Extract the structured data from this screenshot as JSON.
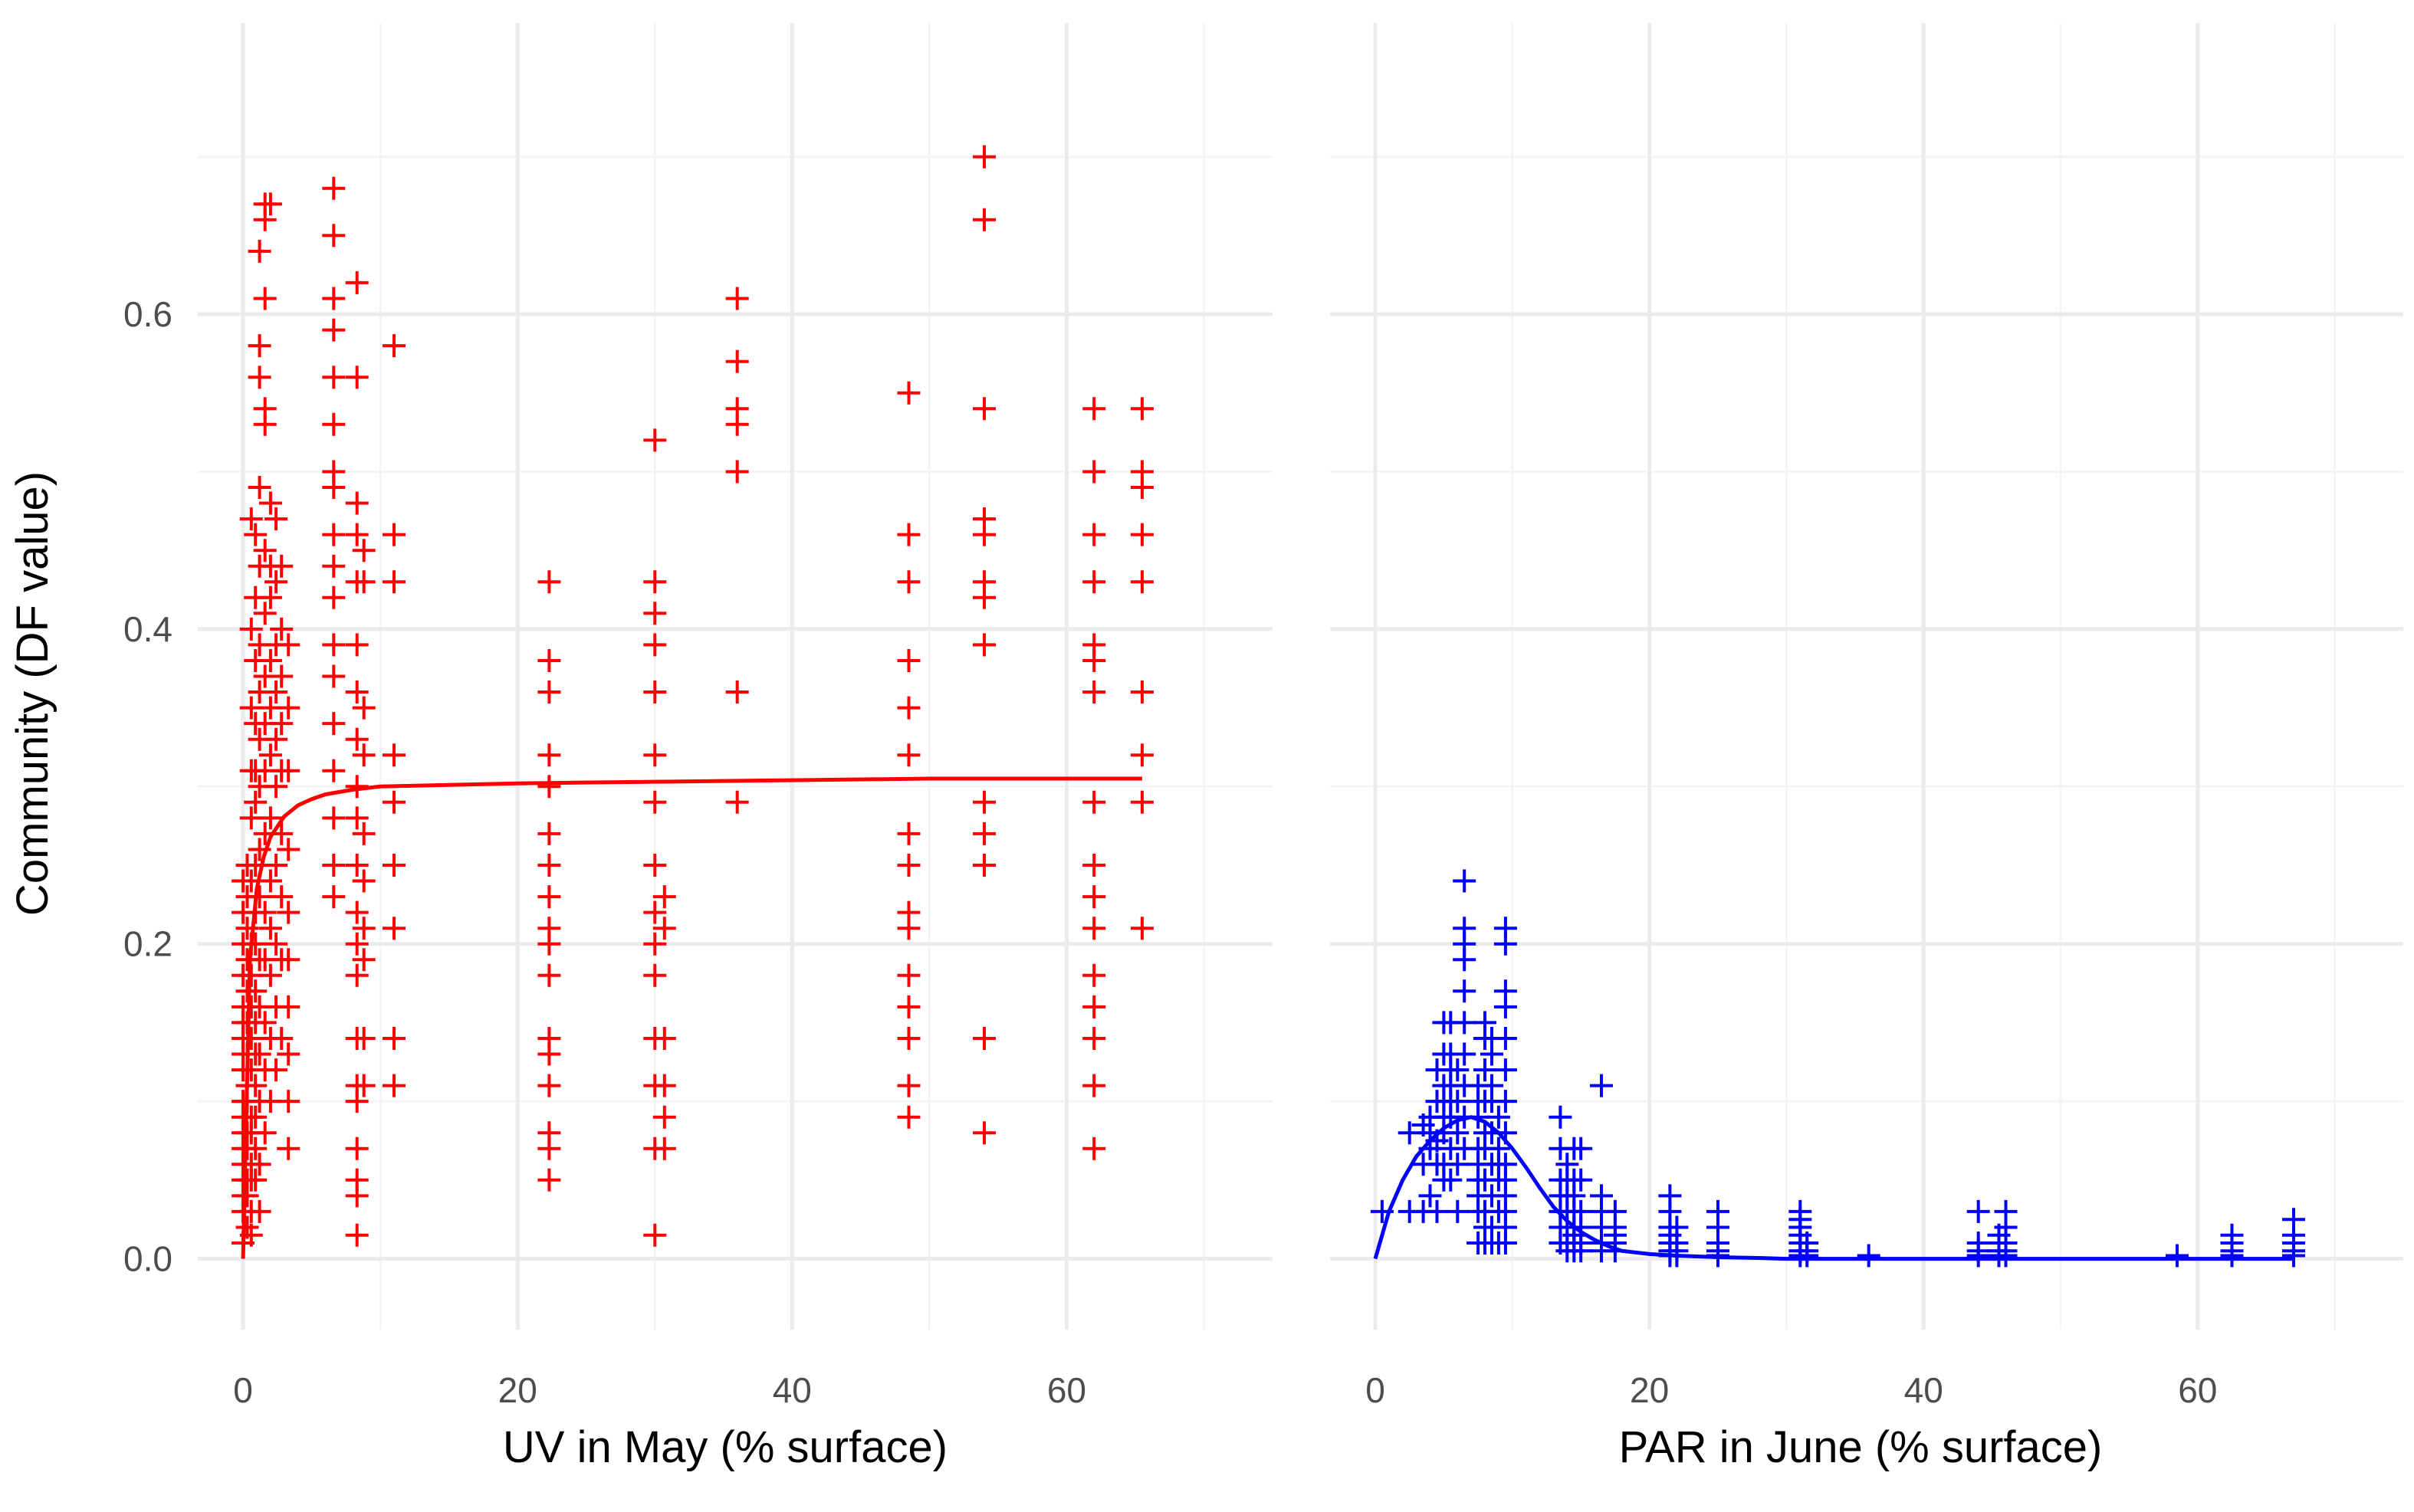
{
  "chart_data": {
    "type": "scatter",
    "shared_y": {
      "label": "Community (DF value)",
      "ylim": [
        -0.045,
        0.785
      ],
      "ticks": [
        0.0,
        0.2,
        0.4,
        0.6
      ],
      "tick_labels": [
        "0.0",
        "0.2",
        "0.4",
        "0.6"
      ]
    },
    "grid": true,
    "legend": "none",
    "panels": [
      {
        "xlabel": "UV in May (% surface)",
        "xlim": [
          -3.3,
          75
        ],
        "x_ticks": [
          0,
          20,
          40,
          60
        ],
        "x_tick_labels": [
          "0",
          "20",
          "40",
          "60"
        ],
        "color": "#ff0000",
        "marker": "plus",
        "series": [
          {
            "x": 0.0,
            "y": [
              0.01,
              0.03,
              0.04,
              0.05,
              0.06,
              0.07,
              0.08,
              0.09,
              0.1,
              0.12,
              0.13,
              0.14,
              0.15,
              0.16,
              0.18,
              0.2,
              0.22,
              0.24
            ]
          },
          {
            "x": 0.3,
            "y": [
              0.02,
              0.04,
              0.05,
              0.07,
              0.08,
              0.1,
              0.11,
              0.13,
              0.15,
              0.17,
              0.19,
              0.21,
              0.23,
              0.25
            ]
          },
          {
            "x": 0.6,
            "y": [
              0.015,
              0.03,
              0.05,
              0.06,
              0.08,
              0.09,
              0.12,
              0.14,
              0.16,
              0.18,
              0.2,
              0.24,
              0.28,
              0.31,
              0.35,
              0.4,
              0.47
            ]
          },
          {
            "x": 0.9,
            "y": [
              0.05,
              0.07,
              0.09,
              0.11,
              0.13,
              0.15,
              0.17,
              0.2,
              0.22,
              0.25,
              0.29,
              0.31,
              0.34,
              0.38,
              0.42,
              0.46
            ]
          },
          {
            "x": 1.2,
            "y": [
              0.03,
              0.06,
              0.1,
              0.13,
              0.16,
              0.19,
              0.23,
              0.26,
              0.3,
              0.33,
              0.36,
              0.39,
              0.44,
              0.49,
              0.56,
              0.58,
              0.64
            ]
          },
          {
            "x": 1.6,
            "y": [
              0.08,
              0.12,
              0.15,
              0.19,
              0.22,
              0.27,
              0.31,
              0.34,
              0.37,
              0.41,
              0.45,
              0.53,
              0.54,
              0.61,
              0.66,
              0.67
            ]
          },
          {
            "x": 2.0,
            "y": [
              0.1,
              0.14,
              0.18,
              0.21,
              0.24,
              0.28,
              0.32,
              0.35,
              0.38,
              0.42,
              0.44,
              0.48,
              0.67
            ]
          },
          {
            "x": 2.4,
            "y": [
              0.12,
              0.16,
              0.2,
              0.25,
              0.3,
              0.33,
              0.36,
              0.39,
              0.43,
              0.47
            ]
          },
          {
            "x": 2.8,
            "y": [
              0.14,
              0.19,
              0.23,
              0.27,
              0.31,
              0.34,
              0.37,
              0.4,
              0.44
            ]
          },
          {
            "x": 3.3,
            "y": [
              0.07,
              0.1,
              0.13,
              0.16,
              0.19,
              0.22,
              0.26,
              0.31,
              0.35,
              0.39
            ]
          },
          {
            "x": 6.6,
            "y": [
              0.23,
              0.25,
              0.28,
              0.31,
              0.34,
              0.37,
              0.39,
              0.42,
              0.44,
              0.46,
              0.49,
              0.5,
              0.53,
              0.56,
              0.59,
              0.61,
              0.65,
              0.68
            ]
          },
          {
            "x": 8.3,
            "y": [
              0.015,
              0.04,
              0.05,
              0.07,
              0.1,
              0.11,
              0.14,
              0.18,
              0.2,
              0.22,
              0.25,
              0.28,
              0.3,
              0.33,
              0.36,
              0.39,
              0.43,
              0.46,
              0.48,
              0.56,
              0.62
            ]
          },
          {
            "x": 8.8,
            "y": [
              0.11,
              0.14,
              0.19,
              0.21,
              0.24,
              0.27,
              0.32,
              0.35,
              0.43,
              0.45
            ]
          },
          {
            "x": 11.0,
            "y": [
              0.11,
              0.14,
              0.21,
              0.25,
              0.29,
              0.32,
              0.43,
              0.46,
              0.58
            ]
          },
          {
            "x": 22.3,
            "y": [
              0.05,
              0.07,
              0.08,
              0.11,
              0.13,
              0.14,
              0.18,
              0.2,
              0.21,
              0.23,
              0.25,
              0.27,
              0.3,
              0.32,
              0.36,
              0.38,
              0.43
            ]
          },
          {
            "x": 30.0,
            "y": [
              0.015,
              0.07,
              0.11,
              0.14,
              0.18,
              0.2,
              0.22,
              0.25,
              0.29,
              0.32,
              0.36,
              0.39,
              0.41,
              0.43,
              0.52
            ]
          },
          {
            "x": 30.7,
            "y": [
              0.07,
              0.09,
              0.11,
              0.14,
              0.21,
              0.23
            ]
          },
          {
            "x": 36.0,
            "y": [
              0.29,
              0.36,
              0.5,
              0.53,
              0.54,
              0.57,
              0.61
            ]
          },
          {
            "x": 48.5,
            "y": [
              0.09,
              0.11,
              0.14,
              0.16,
              0.18,
              0.21,
              0.22,
              0.25,
              0.27,
              0.32,
              0.35,
              0.38,
              0.43,
              0.46,
              0.55
            ]
          },
          {
            "x": 54.0,
            "y": [
              0.08,
              0.14,
              0.25,
              0.27,
              0.29,
              0.39,
              0.42,
              0.43,
              0.46,
              0.47,
              0.54,
              0.66,
              0.7
            ]
          },
          {
            "x": 62.0,
            "y": [
              0.07,
              0.11,
              0.14,
              0.16,
              0.18,
              0.21,
              0.23,
              0.25,
              0.29,
              0.36,
              0.38,
              0.39,
              0.43,
              0.46,
              0.5,
              0.54
            ]
          },
          {
            "x": 65.5,
            "y": [
              0.21,
              0.29,
              0.32,
              0.36,
              0.43,
              0.46,
              0.49,
              0.5,
              0.54
            ]
          }
        ],
        "fit_line": {
          "x": [
            0,
            0.5,
            1,
            1.5,
            2,
            3,
            4,
            5,
            6,
            8,
            10,
            15,
            20,
            30,
            40,
            50,
            60,
            65.5
          ],
          "y": [
            0.0,
            0.19,
            0.235,
            0.255,
            0.268,
            0.281,
            0.288,
            0.292,
            0.295,
            0.298,
            0.3,
            0.301,
            0.302,
            0.303,
            0.304,
            0.305,
            0.305,
            0.305
          ]
        }
      },
      {
        "xlabel": "PAR in June (% surface)",
        "xlim": [
          -3.3,
          75
        ],
        "x_ticks": [
          0,
          20,
          40,
          60
        ],
        "x_tick_labels": [
          "0",
          "20",
          "40",
          "60"
        ],
        "color": "#0000ff",
        "marker": "plus",
        "series": [
          {
            "x": 0.5,
            "y": [
              0.03
            ]
          },
          {
            "x": 2.5,
            "y": [
              0.03,
              0.08
            ]
          },
          {
            "x": 3.5,
            "y": [
              0.03,
              0.06,
              0.085
            ]
          },
          {
            "x": 4.0,
            "y": [
              0.04,
              0.07,
              0.08,
              0.09
            ]
          },
          {
            "x": 4.5,
            "y": [
              0.03,
              0.06,
              0.075,
              0.1,
              0.12
            ]
          },
          {
            "x": 5.0,
            "y": [
              0.05,
              0.06,
              0.08,
              0.09,
              0.1,
              0.11,
              0.13,
              0.15
            ]
          },
          {
            "x": 5.5,
            "y": [
              0.05,
              0.07,
              0.09,
              0.1,
              0.11,
              0.12,
              0.13,
              0.15
            ]
          },
          {
            "x": 6.0,
            "y": [
              0.03,
              0.06,
              0.08,
              0.1,
              0.12
            ]
          },
          {
            "x": 6.5,
            "y": [
              0.07,
              0.09,
              0.11,
              0.13,
              0.15,
              0.17,
              0.19,
              0.2,
              0.21,
              0.24
            ]
          },
          {
            "x": 7.5,
            "y": [
              0.01,
              0.03,
              0.04,
              0.05,
              0.06,
              0.07,
              0.09,
              0.1,
              0.11
            ]
          },
          {
            "x": 8.0,
            "y": [
              0.01,
              0.02,
              0.03,
              0.05,
              0.07,
              0.08,
              0.1,
              0.12,
              0.14,
              0.15
            ]
          },
          {
            "x": 8.5,
            "y": [
              0.01,
              0.02,
              0.04,
              0.06,
              0.08,
              0.1,
              0.11,
              0.13,
              0.14
            ]
          },
          {
            "x": 9.0,
            "y": [
              0.01,
              0.03,
              0.05,
              0.06,
              0.07,
              0.09
            ]
          },
          {
            "x": 9.5,
            "y": [
              0.01,
              0.02,
              0.03,
              0.04,
              0.05,
              0.06,
              0.08,
              0.1,
              0.12,
              0.14,
              0.16,
              0.17,
              0.2,
              0.21
            ]
          },
          {
            "x": 13.5,
            "y": [
              0.01,
              0.02,
              0.03,
              0.04,
              0.05,
              0.07,
              0.09
            ]
          },
          {
            "x": 14.0,
            "y": [
              0.005,
              0.01,
              0.02,
              0.03,
              0.04,
              0.05,
              0.06
            ]
          },
          {
            "x": 14.5,
            "y": [
              0.005,
              0.01,
              0.015,
              0.02,
              0.03,
              0.04,
              0.05,
              0.07
            ]
          },
          {
            "x": 15.0,
            "y": [
              0.005,
              0.01,
              0.02,
              0.03,
              0.05,
              0.07
            ]
          },
          {
            "x": 16.5,
            "y": [
              0.005,
              0.01,
              0.02,
              0.03,
              0.04,
              0.11
            ]
          },
          {
            "x": 17.5,
            "y": [
              0.005,
              0.01,
              0.015,
              0.02,
              0.03
            ]
          },
          {
            "x": 21.5,
            "y": [
              0.002,
              0.005,
              0.01,
              0.015,
              0.02,
              0.03,
              0.04
            ]
          },
          {
            "x": 22.0,
            "y": [
              0.002,
              0.005,
              0.01,
              0.02
            ]
          },
          {
            "x": 25.0,
            "y": [
              0.002,
              0.005,
              0.01,
              0.02,
              0.03
            ]
          },
          {
            "x": 31.0,
            "y": [
              0.002,
              0.005,
              0.01,
              0.015,
              0.02,
              0.025,
              0.03
            ]
          },
          {
            "x": 31.5,
            "y": [
              0.002,
              0.005,
              0.01
            ]
          },
          {
            "x": 36.0,
            "y": [
              0.002
            ]
          },
          {
            "x": 44.0,
            "y": [
              0.002,
              0.005,
              0.01,
              0.03
            ]
          },
          {
            "x": 45.5,
            "y": [
              0.002,
              0.005,
              0.01,
              0.015
            ]
          },
          {
            "x": 46.0,
            "y": [
              0.002,
              0.005,
              0.01,
              0.02,
              0.03
            ]
          },
          {
            "x": 58.5,
            "y": [
              0.002
            ]
          },
          {
            "x": 62.5,
            "y": [
              0.002,
              0.005,
              0.01,
              0.015
            ]
          },
          {
            "x": 67.0,
            "y": [
              0.002,
              0.005,
              0.01,
              0.015,
              0.025
            ]
          }
        ],
        "fit_line": {
          "x": [
            0,
            1,
            2,
            3,
            4,
            5,
            6,
            7,
            8,
            9,
            10,
            11,
            12,
            13,
            14,
            15,
            16,
            17,
            18,
            20,
            22,
            25,
            28,
            30,
            40,
            50,
            60,
            67
          ],
          "y": [
            0.0,
            0.03,
            0.05,
            0.065,
            0.075,
            0.083,
            0.088,
            0.09,
            0.087,
            0.08,
            0.07,
            0.058,
            0.045,
            0.033,
            0.024,
            0.017,
            0.012,
            0.008,
            0.005,
            0.003,
            0.002,
            0.001,
            0.0005,
            0.0,
            0.0,
            0.0,
            0.0,
            0.0
          ]
        }
      }
    ]
  }
}
